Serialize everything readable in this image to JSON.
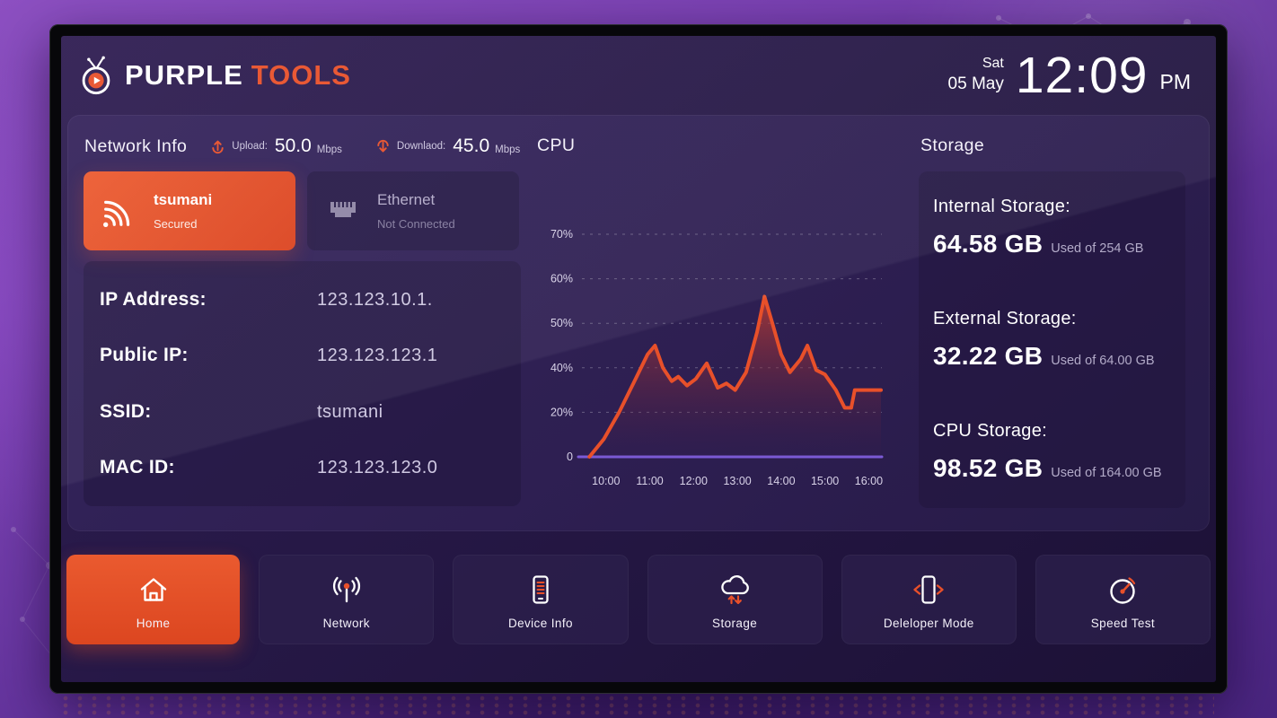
{
  "header": {
    "brand": {
      "word1": "PURPLE",
      "word2": "TOOLS",
      "icon": "brand-tv-icon"
    },
    "clock": {
      "day": "Sat",
      "date": "05 May",
      "time": "12:09",
      "period": "PM"
    }
  },
  "network": {
    "section_title": "Network Info",
    "upload": {
      "icon": "upload-icon",
      "label": "Upload:",
      "value": "50.0",
      "unit": "Mbps"
    },
    "download": {
      "icon": "download-icon",
      "label": "Downlaod:",
      "value": "45.0",
      "unit": "Mbps"
    },
    "wifi_card": {
      "icon": "wifi-icon",
      "name": "tsumani",
      "status": "Secured"
    },
    "ethernet_card": {
      "icon": "ethernet-icon",
      "name": "Ethernet",
      "status": "Not Connected"
    },
    "details": [
      {
        "label": "IP Address:",
        "value": "123.123.10.1."
      },
      {
        "label": "Public IP:",
        "value": "123.123.123.1"
      },
      {
        "label": "SSID:",
        "value": "tsumani"
      },
      {
        "label": "MAC ID:",
        "value": "123.123.123.0"
      }
    ]
  },
  "cpu": {
    "section_title": "CPU"
  },
  "chart_data": {
    "type": "area",
    "title": "CPU",
    "x_tick_labels": [
      "10:00",
      "11:00",
      "12:00",
      "13:00",
      "14:00",
      "15:00",
      "16:00"
    ],
    "x_tick_values": [
      10,
      11,
      12,
      13,
      14,
      15,
      16
    ],
    "x_range": [
      9.45,
      16.3
    ],
    "y_tick_labels": [
      "70%",
      "60%",
      "50%",
      "40%",
      "20%",
      "0"
    ],
    "y_tick_values": [
      70,
      60,
      50,
      40,
      20,
      0
    ],
    "x": [
      9.62,
      9.95,
      10.3,
      10.65,
      10.95,
      11.12,
      11.3,
      11.5,
      11.65,
      11.85,
      12.05,
      12.3,
      12.55,
      12.75,
      12.95,
      13.2,
      13.45,
      13.62,
      13.8,
      14.0,
      14.2,
      14.45,
      14.6,
      14.8,
      15.0,
      15.25,
      15.45,
      15.6,
      15.68,
      16.28
    ],
    "values": [
      0,
      8,
      20,
      34,
      43,
      45,
      40,
      34,
      36,
      32,
      35,
      41,
      31,
      33,
      30,
      38,
      48,
      56,
      50,
      43,
      38,
      42,
      45,
      39,
      37,
      30,
      22,
      22,
      30,
      30
    ],
    "line_color": "#e8502a",
    "baseline_color": "#7c5bd8",
    "grid": "dashed horizontal",
    "legend": "none"
  },
  "storage": {
    "section_title": "Storage",
    "items": [
      {
        "label": "Internal Storage:",
        "value": "64.58 GB",
        "usage": "Used of 254 GB"
      },
      {
        "label": "External Storage:",
        "value": "32.22 GB",
        "usage": "Used of 64.00 GB"
      },
      {
        "label": "CPU Storage:",
        "value": "98.52 GB",
        "usage": "Used of 164.00 GB"
      }
    ]
  },
  "nav": {
    "items": [
      {
        "label": "Home",
        "icon": "home-icon",
        "active": true
      },
      {
        "label": "Network",
        "icon": "network-icon",
        "active": false
      },
      {
        "label": "Device Info",
        "icon": "device-info-icon",
        "active": false
      },
      {
        "label": "Storage",
        "icon": "storage-cloud-icon",
        "active": false
      },
      {
        "label": "Deleloper Mode",
        "icon": "developer-mode-icon",
        "active": false
      },
      {
        "label": "Speed Test",
        "icon": "speed-test-icon",
        "active": false
      }
    ]
  },
  "colors": {
    "accent": "#e8502a",
    "chart_baseline": "#7c5bd8",
    "screen_bg": "#241643",
    "outer_bg": "#6a3aa0"
  }
}
